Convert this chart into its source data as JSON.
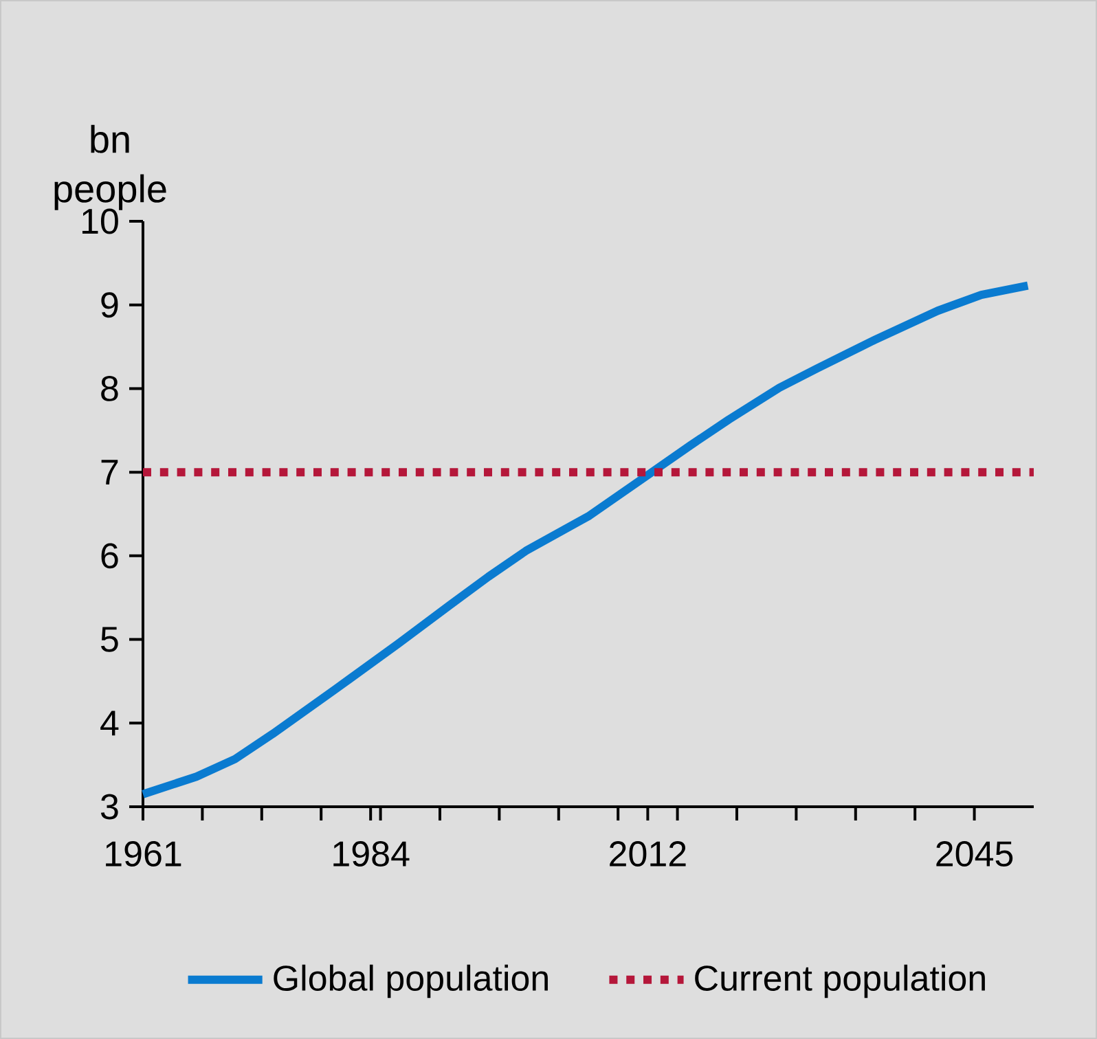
{
  "chart_data": {
    "type": "line",
    "ylabel": "bn people",
    "x": [
      1961,
      1966.4,
      1970.3,
      1974.1,
      1980.5,
      1986.8,
      1992,
      1995.9,
      1999.7,
      2006.1,
      2011.2,
      2016.3,
      2020.2,
      2025.3,
      2029.1,
      2034.9,
      2041.3,
      2045.7,
      2050.4
    ],
    "series": [
      {
        "name": "Global population",
        "color": "#0a7bd0",
        "values": [
          3.15,
          3.36,
          3.57,
          3.87,
          4.41,
          4.95,
          5.41,
          5.75,
          6.06,
          6.48,
          6.9,
          7.32,
          7.63,
          8.01,
          8.24,
          8.58,
          8.93,
          9.12,
          9.23
        ]
      }
    ],
    "ref_lines": [
      {
        "axis": "y",
        "value": 7,
        "label": "Current population",
        "color": "#b5173a",
        "line_style": "dotted"
      }
    ],
    "xlim": [
      1961,
      2051
    ],
    "xticks": [
      1961,
      {
        "value": 1967,
        "label": null
      },
      {
        "value": 1973,
        "label": null
      },
      {
        "value": 1979,
        "label": null
      },
      1984,
      {
        "value": 1985,
        "label": null
      },
      {
        "value": 1991,
        "label": null
      },
      {
        "value": 1997,
        "label": null
      },
      {
        "value": 2003,
        "label": null
      },
      {
        "value": 2009,
        "label": null
      },
      2012,
      {
        "value": 2015,
        "label": null
      },
      {
        "value": 2021,
        "label": null
      },
      {
        "value": 2027,
        "label": null
      },
      {
        "value": 2033,
        "label": null
      },
      {
        "value": 2039,
        "label": null
      },
      2045
    ],
    "ylim": [
      3,
      10
    ],
    "yticks": [
      3,
      4,
      5,
      6,
      7,
      8,
      9,
      10
    ],
    "grid": false,
    "legend": "bottom",
    "marker": "none",
    "line_style": "solid"
  }
}
